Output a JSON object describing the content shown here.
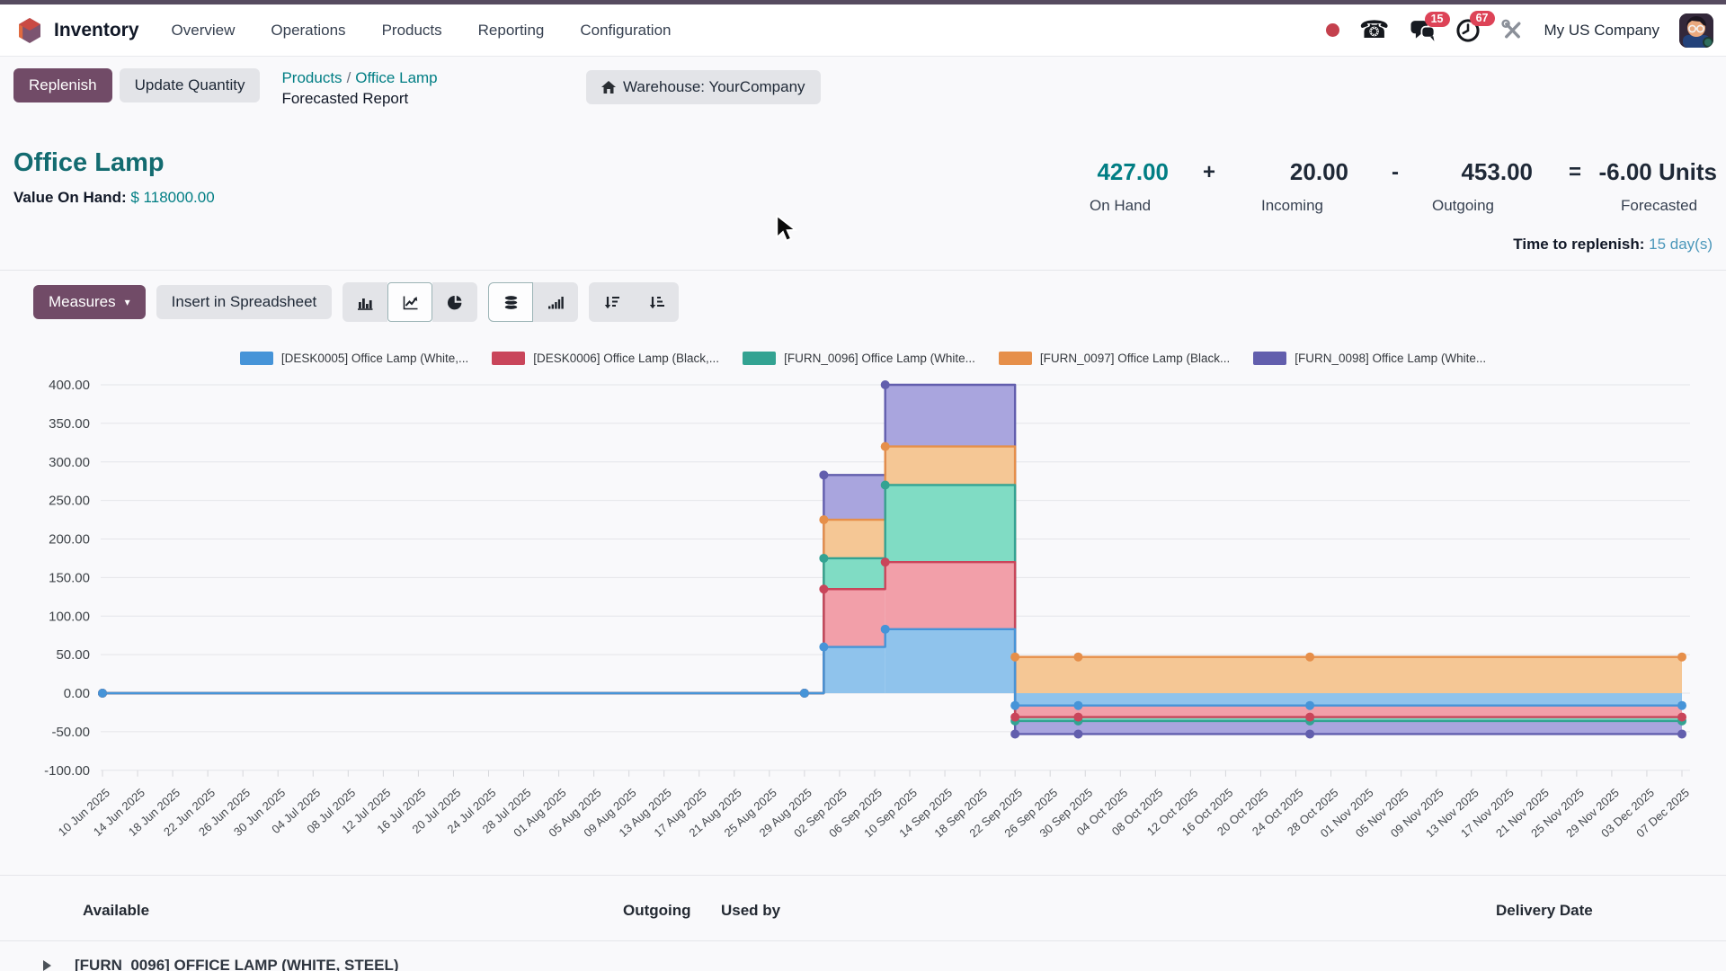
{
  "nav": {
    "app": "Inventory",
    "items": [
      "Overview",
      "Operations",
      "Products",
      "Reporting",
      "Configuration"
    ],
    "systray": {
      "messages_count": "15",
      "activities_count": "67",
      "company": "My US Company"
    }
  },
  "control": {
    "replenish": "Replenish",
    "update_quantity": "Update Quantity",
    "breadcrumb": {
      "link1": "Products",
      "sep": "/",
      "link2": "Office Lamp",
      "current": "Forecasted Report"
    },
    "warehouse": "Warehouse: YourCompany"
  },
  "product": {
    "title": "Office Lamp",
    "value_label": "Value On Hand:",
    "value": "$ 118000.00",
    "metrics": {
      "on_hand": {
        "value": "427.00",
        "label": "On Hand"
      },
      "plus": "+",
      "incoming": {
        "value": "20.00",
        "label": "Incoming"
      },
      "minus": "-",
      "outgoing": {
        "value": "453.00",
        "label": "Outgoing"
      },
      "equals": "=",
      "forecasted": {
        "value": "-6.00 Units",
        "label": "Forecasted"
      }
    },
    "time_to_replenish_label": "Time to replenish:",
    "time_to_replenish_value": "15 day(s)"
  },
  "toolbar": {
    "measures": "Measures",
    "insert": "Insert in Spreadsheet"
  },
  "chart_data": {
    "type": "area",
    "stacked": true,
    "legend_position": "top",
    "ylim": [
      -100,
      400
    ],
    "y_tick_step": 50,
    "x_tick_labels": [
      "10 Jun 2025",
      "14 Jun 2025",
      "18 Jun 2025",
      "22 Jun 2025",
      "26 Jun 2025",
      "30 Jun 2025",
      "04 Jul 2025",
      "08 Jul 2025",
      "12 Jul 2025",
      "16 Jul 2025",
      "20 Jul 2025",
      "24 Jul 2025",
      "28 Jul 2025",
      "01 Aug 2025",
      "05 Aug 2025",
      "09 Aug 2025",
      "13 Aug 2025",
      "17 Aug 2025",
      "21 Aug 2025",
      "25 Aug 2025",
      "29 Aug 2025",
      "02 Sep 2025",
      "06 Sep 2025",
      "10 Sep 2025",
      "14 Sep 2025",
      "18 Sep 2025",
      "22 Sep 2025",
      "26 Sep 2025",
      "30 Sep 2025",
      "04 Oct 2025",
      "08 Oct 2025",
      "12 Oct 2025",
      "16 Oct 2025",
      "20 Oct 2025",
      "24 Oct 2025",
      "28 Oct 2025",
      "01 Nov 2025",
      "05 Nov 2025",
      "09 Nov 2025",
      "13 Nov 2025",
      "17 Nov 2025",
      "21 Nov 2025",
      "25 Nov 2025",
      "29 Nov 2025",
      "03 Dec 2025",
      "07 Dec 2025"
    ],
    "series": [
      {
        "name": "[DESK0005] Office Lamp (White,...",
        "color": "#4694d8",
        "fill": "#8fc3ec"
      },
      {
        "name": "[DESK0006] Office Lamp (Black,...",
        "color": "#c9455a",
        "fill": "#f29fa9"
      },
      {
        "name": "[FURN_0096] Office Lamp (White...",
        "color": "#33a392",
        "fill": "#80dcc4"
      },
      {
        "name": "[FURN_0097] Office Lamp (Black...",
        "color": "#e68f4a",
        "fill": "#f5c795"
      },
      {
        "name": "[FURN_0098] Office Lamp (White...",
        "color": "#625ead",
        "fill": "#a9a5de"
      }
    ],
    "segments": [
      {
        "from": 0,
        "to": 20.55,
        "values": [
          0,
          0,
          0,
          0,
          0
        ]
      },
      {
        "from": 20.55,
        "to": 22.3,
        "values": [
          60,
          75,
          40,
          50,
          58
        ]
      },
      {
        "from": 22.3,
        "to": 26.0,
        "values": [
          83,
          87,
          100,
          50,
          80
        ]
      },
      {
        "from": 26.0,
        "to": 45,
        "values": [
          -16,
          -15,
          -5,
          47,
          -17
        ]
      }
    ],
    "dot_ts": [
      0,
      20.0,
      20.55,
      22.3,
      26.0,
      27.8,
      34.4,
      45
    ]
  },
  "table": {
    "headers": [
      "Available",
      "Outgoing",
      "Used by",
      "Delivery Date"
    ],
    "first_row": "[FURN_0096] OFFICE LAMP (WHITE, STEEL)"
  }
}
